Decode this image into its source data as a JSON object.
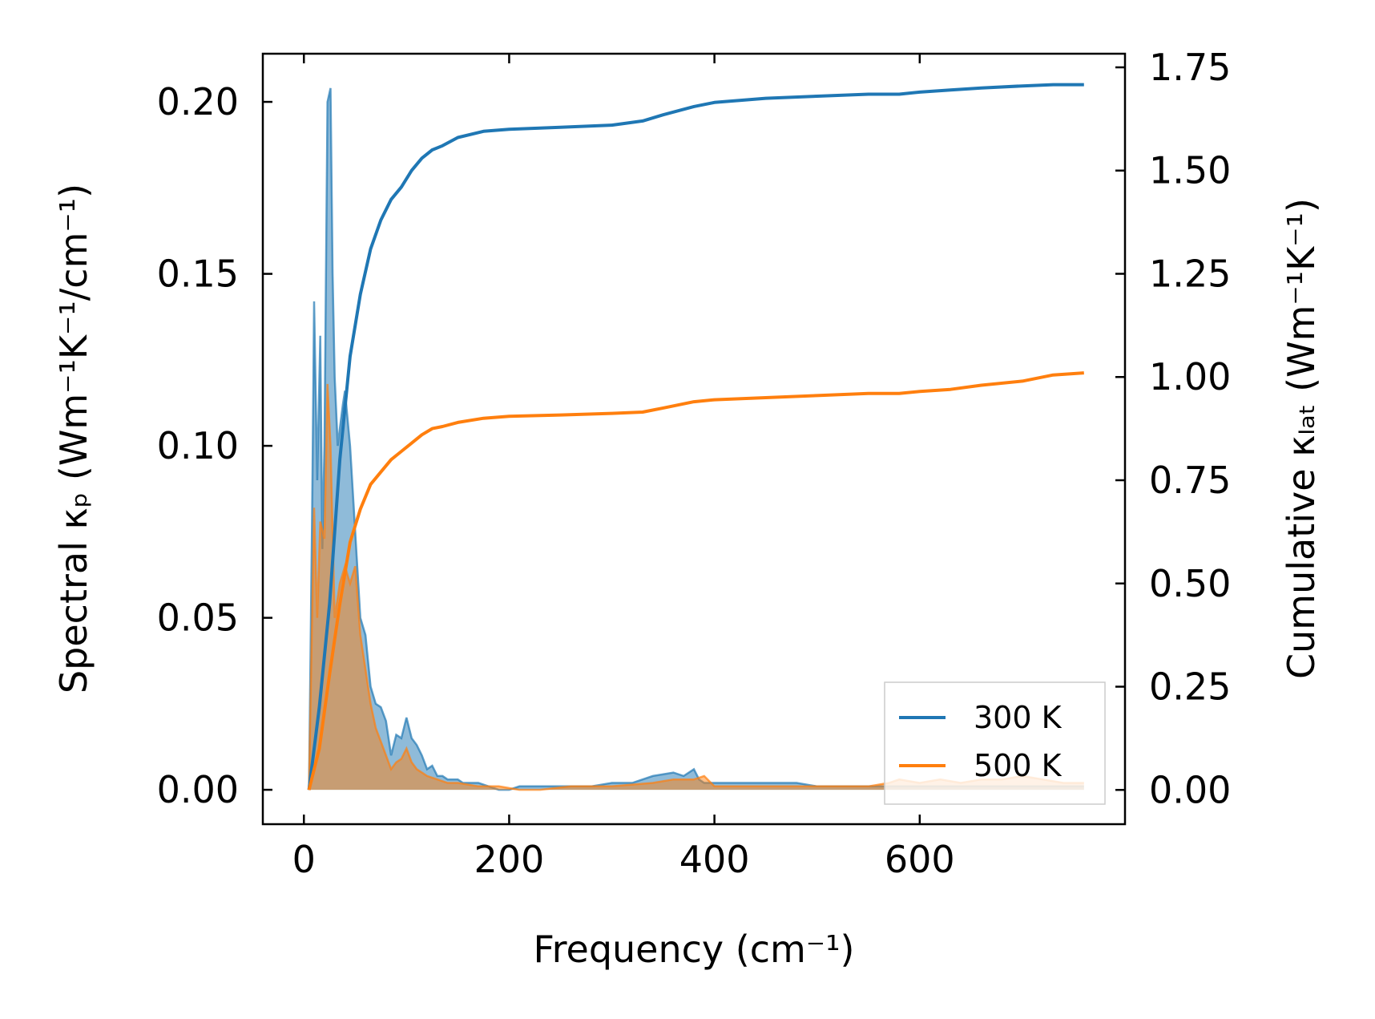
{
  "chart_data": {
    "type": "line",
    "xlabel": "Frequency (cm⁻¹)",
    "ylabel_left": "Spectral κₚ (Wm⁻¹K⁻¹/cm⁻¹)",
    "ylabel_right": "Cumulative κₗₐₜ (Wm⁻¹K⁻¹)",
    "xlim": [
      -40,
      800
    ],
    "ylim_left": [
      -0.01,
      0.214
    ],
    "ylim_right": [
      -0.083,
      1.783
    ],
    "x_ticks": [
      0,
      200,
      400,
      600
    ],
    "x_tick_labels": [
      "0",
      "200",
      "400",
      "600"
    ],
    "y_left_ticks": [
      0.0,
      0.05,
      0.1,
      0.15,
      0.2
    ],
    "y_left_tick_labels": [
      "0.00",
      "0.05",
      "0.10",
      "0.15",
      "0.20"
    ],
    "y_right_ticks": [
      0.0,
      0.25,
      0.5,
      0.75,
      1.0,
      1.25,
      1.5,
      1.75
    ],
    "y_right_tick_labels": [
      "0.00",
      "0.25",
      "0.50",
      "0.75",
      "1.00",
      "1.25",
      "1.50",
      "1.75"
    ],
    "legend_position": "bottom-right",
    "series": [
      {
        "name": "300 K",
        "color": "#1f77b4",
        "spectral_x": [
          5,
          8,
          10,
          13,
          16,
          18,
          20,
          23,
          26,
          28,
          30,
          33,
          35,
          38,
          40,
          45,
          50,
          55,
          60,
          65,
          70,
          75,
          80,
          85,
          90,
          95,
          100,
          105,
          110,
          115,
          120,
          125,
          130,
          135,
          140,
          145,
          150,
          155,
          160,
          170,
          180,
          190,
          200,
          210,
          220,
          230,
          240,
          250,
          260,
          280,
          300,
          320,
          340,
          360,
          370,
          380,
          385,
          390,
          400,
          420,
          440,
          460,
          480,
          500,
          520,
          540,
          560,
          580,
          600,
          620,
          640,
          660,
          680,
          700,
          720,
          740,
          760
        ],
        "spectral_y": [
          0.0,
          0.08,
          0.142,
          0.09,
          0.132,
          0.07,
          0.1,
          0.2,
          0.204,
          0.15,
          0.12,
          0.1,
          0.105,
          0.112,
          0.116,
          0.1,
          0.075,
          0.05,
          0.045,
          0.03,
          0.025,
          0.024,
          0.02,
          0.01,
          0.016,
          0.015,
          0.021,
          0.015,
          0.013,
          0.01,
          0.006,
          0.007,
          0.004,
          0.004,
          0.003,
          0.003,
          0.003,
          0.002,
          0.002,
          0.002,
          0.001,
          0.0,
          0.0,
          0.001,
          0.001,
          0.001,
          0.001,
          0.001,
          0.001,
          0.001,
          0.002,
          0.002,
          0.004,
          0.005,
          0.004,
          0.006,
          0.003,
          0.002,
          0.002,
          0.002,
          0.002,
          0.002,
          0.002,
          0.001,
          0.001,
          0.001,
          0.001,
          0.001,
          0.001,
          0.001,
          0.001,
          0.001,
          0.001,
          0.001,
          0.001,
          0.001,
          0.001
        ],
        "cumulative_x": [
          5,
          15,
          25,
          35,
          45,
          55,
          65,
          75,
          85,
          95,
          105,
          115,
          125,
          135,
          150,
          175,
          200,
          250,
          300,
          330,
          350,
          380,
          400,
          450,
          500,
          550,
          580,
          600,
          630,
          660,
          700,
          730,
          760
        ],
        "cumulative_y": [
          0.0,
          0.2,
          0.45,
          0.8,
          1.05,
          1.2,
          1.31,
          1.38,
          1.43,
          1.46,
          1.5,
          1.53,
          1.55,
          1.56,
          1.58,
          1.595,
          1.6,
          1.605,
          1.61,
          1.62,
          1.635,
          1.655,
          1.665,
          1.675,
          1.68,
          1.685,
          1.685,
          1.69,
          1.695,
          1.7,
          1.705,
          1.708,
          1.708
        ]
      },
      {
        "name": "500 K",
        "color": "#ff7f0e",
        "spectral_x": [
          5,
          10,
          13,
          16,
          20,
          23,
          26,
          30,
          35,
          40,
          45,
          50,
          55,
          60,
          65,
          70,
          75,
          80,
          85,
          90,
          95,
          100,
          105,
          110,
          115,
          120,
          130,
          140,
          150,
          170,
          190,
          210,
          230,
          260,
          300,
          340,
          360,
          380,
          390,
          400,
          450,
          500,
          550,
          570,
          580,
          600,
          620,
          640,
          660,
          680,
          700,
          720,
          740,
          760
        ],
        "spectral_y": [
          0.0,
          0.082,
          0.05,
          0.078,
          0.073,
          0.118,
          0.1,
          0.05,
          0.06,
          0.065,
          0.06,
          0.065,
          0.045,
          0.035,
          0.025,
          0.018,
          0.014,
          0.01,
          0.006,
          0.008,
          0.009,
          0.012,
          0.008,
          0.006,
          0.005,
          0.004,
          0.003,
          0.002,
          0.002,
          0.001,
          0.001,
          0.0,
          0.0,
          0.001,
          0.001,
          0.002,
          0.003,
          0.003,
          0.004,
          0.001,
          0.001,
          0.001,
          0.001,
          0.002,
          0.003,
          0.002,
          0.003,
          0.002,
          0.003,
          0.003,
          0.004,
          0.003,
          0.002,
          0.002
        ],
        "cumulative_x": [
          5,
          15,
          25,
          35,
          45,
          55,
          65,
          75,
          85,
          95,
          105,
          115,
          125,
          135,
          150,
          175,
          200,
          250,
          300,
          330,
          350,
          380,
          400,
          450,
          500,
          550,
          580,
          600,
          630,
          660,
          700,
          730,
          760
        ],
        "cumulative_y": [
          0.0,
          0.1,
          0.28,
          0.45,
          0.6,
          0.68,
          0.74,
          0.77,
          0.8,
          0.82,
          0.84,
          0.86,
          0.875,
          0.88,
          0.89,
          0.9,
          0.905,
          0.908,
          0.912,
          0.915,
          0.925,
          0.94,
          0.945,
          0.95,
          0.955,
          0.96,
          0.96,
          0.965,
          0.97,
          0.98,
          0.99,
          1.005,
          1.01
        ]
      }
    ]
  }
}
